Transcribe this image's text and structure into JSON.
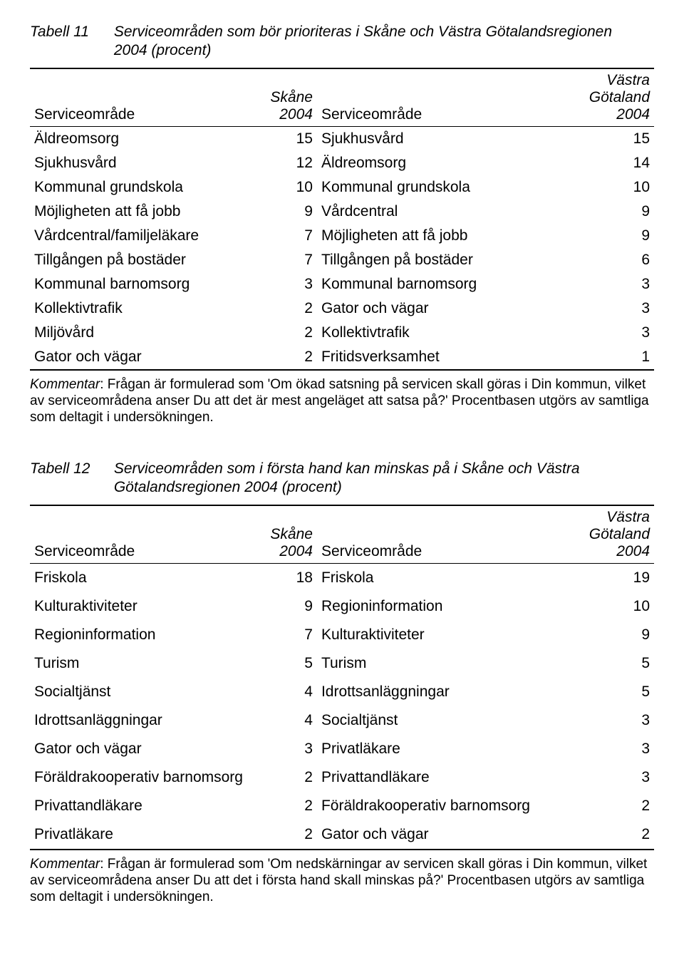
{
  "table1": {
    "label": "Tabell 11",
    "title": "Serviceområden som bör prioriteras i Skåne och Västra Götalandsregionen 2004 (procent)",
    "head": {
      "left_label": "Serviceområde",
      "left_col": "Skåne 2004",
      "right_label": "Serviceområde",
      "right_col_line1": "Västra",
      "right_col_line2": "Götaland",
      "right_col_line3": "2004"
    },
    "rows": [
      {
        "l": "Äldreomsorg",
        "lv": "15",
        "r": "Sjukhusvård",
        "rv": "15"
      },
      {
        "l": "Sjukhusvård",
        "lv": "12",
        "r": "Äldreomsorg",
        "rv": "14"
      },
      {
        "l": "Kommunal grundskola",
        "lv": "10",
        "r": "Kommunal grundskola",
        "rv": "10"
      },
      {
        "l": "Möjligheten att få jobb",
        "lv": "9",
        "r": "Vårdcentral",
        "rv": "9"
      },
      {
        "l": "Vårdcentral/familjeläkare",
        "lv": "7",
        "r": "Möjligheten att få jobb",
        "rv": "9"
      },
      {
        "l": "Tillgången på bostäder",
        "lv": "7",
        "r": "Tillgången på bostäder",
        "rv": "6"
      },
      {
        "l": "Kommunal barnomsorg",
        "lv": "3",
        "r": "Kommunal barnomsorg",
        "rv": "3"
      },
      {
        "l": "Kollektivtrafik",
        "lv": "2",
        "r": "Gator och vägar",
        "rv": "3"
      },
      {
        "l": "Miljövård",
        "lv": "2",
        "r": "Kollektivtrafik",
        "rv": "3"
      },
      {
        "l": "Gator och vägar",
        "lv": "2",
        "r": "Fritidsverksamhet",
        "rv": "1"
      }
    ],
    "komment_label": "Kommentar",
    "komment_text": ": Frågan är formulerad som 'Om ökad satsning på servicen skall göras i Din kommun, vilket av serviceområdena anser Du att det är mest angeläget att satsa på?' Procentbasen utgörs av samtliga som deltagit i undersökningen."
  },
  "table2": {
    "label": "Tabell 12",
    "title": "Serviceområden som i första hand kan minskas på i Skåne och Västra Götalandsregionen 2004 (procent)",
    "head": {
      "left_label": "Serviceområde",
      "left_col": "Skåne 2004",
      "right_label": "Serviceområde",
      "right_col_line1": "Västra",
      "right_col_line2": "Götaland",
      "right_col_line3": "2004"
    },
    "rows": [
      {
        "l": "Friskola",
        "lv": "18",
        "r": "Friskola",
        "rv": "19"
      },
      {
        "l": "Kulturaktiviteter",
        "lv": "9",
        "r": "Regioninformation",
        "rv": "10"
      },
      {
        "l": "Regioninformation",
        "lv": "7",
        "r": "Kulturaktiviteter",
        "rv": "9"
      },
      {
        "l": "Turism",
        "lv": "5",
        "r": "Turism",
        "rv": "5"
      },
      {
        "l": "Socialtjänst",
        "lv": "4",
        "r": "Idrottsanläggningar",
        "rv": "5"
      },
      {
        "l": "Idrottsanläggningar",
        "lv": "4",
        "r": "Socialtjänst",
        "rv": "3"
      },
      {
        "l": "Gator och vägar",
        "lv": "3",
        "r": "Privatläkare",
        "rv": "3"
      },
      {
        "l": "Föräldrakooperativ barnomsorg",
        "lv": "2",
        "r": "Privattandläkare",
        "rv": "3"
      },
      {
        "l": "Privattandläkare",
        "lv": "2",
        "r": "Föräldrakooperativ barnomsorg",
        "rv": "2"
      },
      {
        "l": "Privatläkare",
        "lv": "2",
        "r": "Gator och vägar",
        "rv": "2"
      }
    ],
    "komment_label": "Kommentar",
    "komment_text": ": Frågan är formulerad som 'Om nedskärningar av servicen skall göras i Din kommun, vilket av serviceområdena anser Du att det i första hand skall minskas på?' Procentbasen utgörs av samtliga som deltagit i undersökningen."
  }
}
